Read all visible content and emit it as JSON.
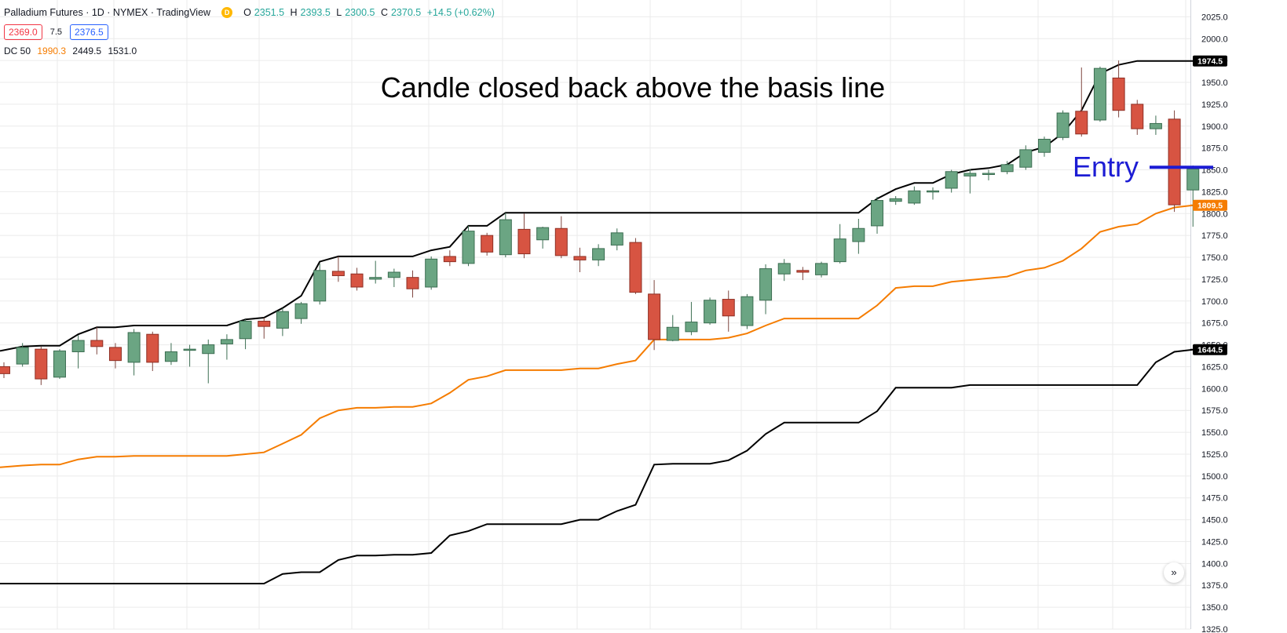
{
  "legend": {
    "title": "Palladium Futures · 1D · NYMEX · TradingView",
    "source_badge": "D",
    "open": "2351.5",
    "high": "2393.5",
    "low": "2300.5",
    "close": "2370.5",
    "change": "+14.5 (+0.62%)",
    "bid": "2369.0",
    "spread": "7.5",
    "ask": "2376.5",
    "indicator": "DC 50",
    "dc_basis": "1990.3",
    "dc_upper": "2449.5",
    "dc_lower": "1531.0"
  },
  "scroll_icon": "double-chevron-right-icon",
  "colors": {
    "up": "#6ba583",
    "down": "#d75442",
    "wick": "#7f4740",
    "upper": "#000000",
    "lower": "#000000",
    "basis": "#f57c00",
    "entry": "#1c1cd4",
    "grid": "#ebebeb"
  },
  "chart_data": {
    "type": "candlestick",
    "y_axis": {
      "min": 1325,
      "max": 2037,
      "ticks": [
        1325,
        1350,
        1375,
        1400,
        1425,
        1450,
        1475,
        1500,
        1525,
        1550,
        1575,
        1600,
        1625,
        1650,
        1675,
        1700,
        1725,
        1750,
        1775,
        1800,
        1825,
        1850,
        1875,
        1900,
        1925,
        1950,
        1975,
        2000,
        2025
      ],
      "tick_labels": [
        "1325.0",
        "1350.0",
        "1375.0",
        "1400.0",
        "1425.0",
        "1450.0",
        "1475.0",
        "1500.0",
        "1525.0",
        "1550.0",
        "1575.0",
        "1600.0",
        "1625.0",
        "1650.0",
        "1675.0",
        "1700.0",
        "1725.0",
        "1750.0",
        "1775.0",
        "1800.0",
        "1825.0",
        "1850.0",
        "1875.0",
        "1900.0",
        "1925.0",
        "1950.0",
        "1975.0",
        "2000.0",
        "2025.0"
      ]
    },
    "grid": true,
    "candles": [
      {
        "o": 1625,
        "h": 1630,
        "l": 1612,
        "c": 1617
      },
      {
        "o": 1628,
        "h": 1652,
        "l": 1625,
        "c": 1647
      },
      {
        "o": 1645,
        "h": 1648,
        "l": 1604,
        "c": 1611
      },
      {
        "o": 1613,
        "h": 1645,
        "l": 1611,
        "c": 1643
      },
      {
        "o": 1642,
        "h": 1661,
        "l": 1623,
        "c": 1655
      },
      {
        "o": 1655,
        "h": 1670,
        "l": 1639,
        "c": 1648
      },
      {
        "o": 1647,
        "h": 1652,
        "l": 1623,
        "c": 1632
      },
      {
        "o": 1630,
        "h": 1668,
        "l": 1615,
        "c": 1664
      },
      {
        "o": 1662,
        "h": 1665,
        "l": 1620,
        "c": 1630
      },
      {
        "o": 1631,
        "h": 1652,
        "l": 1627,
        "c": 1642
      },
      {
        "o": 1645,
        "h": 1650,
        "l": 1625,
        "c": 1645
      },
      {
        "o": 1640,
        "h": 1656,
        "l": 1606,
        "c": 1650
      },
      {
        "o": 1651,
        "h": 1662,
        "l": 1633,
        "c": 1656
      },
      {
        "o": 1657,
        "h": 1679,
        "l": 1645,
        "c": 1677
      },
      {
        "o": 1677,
        "h": 1681,
        "l": 1657,
        "c": 1671
      },
      {
        "o": 1669,
        "h": 1692,
        "l": 1660,
        "c": 1688
      },
      {
        "o": 1680,
        "h": 1699,
        "l": 1674,
        "c": 1697
      },
      {
        "o": 1700,
        "h": 1743,
        "l": 1696,
        "c": 1735
      },
      {
        "o": 1734,
        "h": 1751,
        "l": 1722,
        "c": 1729
      },
      {
        "o": 1731,
        "h": 1738,
        "l": 1712,
        "c": 1716
      },
      {
        "o": 1725,
        "h": 1746,
        "l": 1720,
        "c": 1727
      },
      {
        "o": 1727,
        "h": 1737,
        "l": 1716,
        "c": 1733
      },
      {
        "o": 1727,
        "h": 1735,
        "l": 1704,
        "c": 1714
      },
      {
        "o": 1716,
        "h": 1751,
        "l": 1713,
        "c": 1748
      },
      {
        "o": 1751,
        "h": 1758,
        "l": 1740,
        "c": 1745
      },
      {
        "o": 1743,
        "h": 1786,
        "l": 1740,
        "c": 1780
      },
      {
        "o": 1775,
        "h": 1778,
        "l": 1752,
        "c": 1756
      },
      {
        "o": 1753,
        "h": 1801,
        "l": 1750,
        "c": 1793
      },
      {
        "o": 1782,
        "h": 1800,
        "l": 1749,
        "c": 1754
      },
      {
        "o": 1770,
        "h": 1785,
        "l": 1760,
        "c": 1784
      },
      {
        "o": 1783,
        "h": 1797,
        "l": 1749,
        "c": 1752
      },
      {
        "o": 1751,
        "h": 1761,
        "l": 1733,
        "c": 1747
      },
      {
        "o": 1747,
        "h": 1765,
        "l": 1740,
        "c": 1760
      },
      {
        "o": 1764,
        "h": 1783,
        "l": 1758,
        "c": 1778
      },
      {
        "o": 1767,
        "h": 1772,
        "l": 1708,
        "c": 1710
      },
      {
        "o": 1708,
        "h": 1724,
        "l": 1644,
        "c": 1656
      },
      {
        "o": 1655,
        "h": 1684,
        "l": 1654,
        "c": 1670
      },
      {
        "o": 1665,
        "h": 1699,
        "l": 1661,
        "c": 1676
      },
      {
        "o": 1675,
        "h": 1704,
        "l": 1673,
        "c": 1701
      },
      {
        "o": 1702,
        "h": 1712,
        "l": 1665,
        "c": 1683
      },
      {
        "o": 1672,
        "h": 1708,
        "l": 1668,
        "c": 1705
      },
      {
        "o": 1701,
        "h": 1742,
        "l": 1685,
        "c": 1737
      },
      {
        "o": 1731,
        "h": 1748,
        "l": 1723,
        "c": 1743
      },
      {
        "o": 1735,
        "h": 1739,
        "l": 1724,
        "c": 1733
      },
      {
        "o": 1730,
        "h": 1745,
        "l": 1727,
        "c": 1743
      },
      {
        "o": 1745,
        "h": 1788,
        "l": 1743,
        "c": 1771
      },
      {
        "o": 1768,
        "h": 1794,
        "l": 1754,
        "c": 1783
      },
      {
        "o": 1786,
        "h": 1819,
        "l": 1777,
        "c": 1815
      },
      {
        "o": 1814,
        "h": 1820,
        "l": 1810,
        "c": 1817
      },
      {
        "o": 1812,
        "h": 1831,
        "l": 1810,
        "c": 1826
      },
      {
        "o": 1826,
        "h": 1830,
        "l": 1816,
        "c": 1826
      },
      {
        "o": 1829,
        "h": 1850,
        "l": 1824,
        "c": 1848
      },
      {
        "o": 1843,
        "h": 1851,
        "l": 1823,
        "c": 1846
      },
      {
        "o": 1845,
        "h": 1850,
        "l": 1838,
        "c": 1846
      },
      {
        "o": 1848,
        "h": 1860,
        "l": 1845,
        "c": 1856
      },
      {
        "o": 1853,
        "h": 1878,
        "l": 1850,
        "c": 1873
      },
      {
        "o": 1870,
        "h": 1888,
        "l": 1865,
        "c": 1885
      },
      {
        "o": 1887,
        "h": 1918,
        "l": 1884,
        "c": 1915
      },
      {
        "o": 1917,
        "h": 1967,
        "l": 1888,
        "c": 1891
      },
      {
        "o": 1907,
        "h": 1968,
        "l": 1905,
        "c": 1966
      },
      {
        "o": 1955,
        "h": 1975,
        "l": 1910,
        "c": 1918
      },
      {
        "o": 1925,
        "h": 1930,
        "l": 1890,
        "c": 1897
      },
      {
        "o": 1897,
        "h": 1912,
        "l": 1890,
        "c": 1903
      },
      {
        "o": 1908,
        "h": 1918,
        "l": 1802,
        "c": 1810
      },
      {
        "o": 1827,
        "h": 1855,
        "l": 1785,
        "c": 1851
      }
    ],
    "series": [
      {
        "values": [
          1643,
          1648,
          1649,
          1649,
          1662,
          1670,
          1670,
          1672,
          1672,
          1672,
          1672,
          1672,
          1672,
          1679,
          1681,
          1692,
          1706,
          1745,
          1751,
          1751,
          1751,
          1751,
          1751,
          1758,
          1762,
          1786,
          1786,
          1801,
          1801,
          1801,
          1801,
          1801,
          1801,
          1801,
          1801,
          1801,
          1801,
          1801,
          1801,
          1801,
          1801,
          1801,
          1801,
          1801,
          1801,
          1801,
          1801,
          1817,
          1828,
          1835,
          1835,
          1845,
          1850,
          1852,
          1856,
          1870,
          1876,
          1892,
          1918,
          1960,
          1970,
          1974.5,
          1974.5,
          1974.5,
          1974.5,
          1974.5
        ]
      },
      {
        "values": [
          1510,
          1512,
          1513,
          1513,
          1519,
          1522,
          1522,
          1523,
          1523,
          1523,
          1523,
          1523,
          1523,
          1525,
          1527,
          1537,
          1547,
          1566,
          1575,
          1578,
          1578,
          1579,
          1579,
          1583,
          1595,
          1610,
          1614,
          1621,
          1621,
          1621,
          1621,
          1623,
          1623,
          1628,
          1632,
          1656,
          1656,
          1656,
          1656,
          1658,
          1663,
          1672,
          1680,
          1680,
          1680,
          1680,
          1680,
          1695,
          1715,
          1717,
          1717,
          1722,
          1724,
          1726,
          1728,
          1735,
          1738,
          1746,
          1760,
          1779,
          1785,
          1788,
          1800,
          1807,
          1809.5,
          1809.5
        ]
      },
      {
        "values": [
          1377,
          1377,
          1377,
          1377,
          1377,
          1377,
          1377,
          1377,
          1377,
          1377,
          1377,
          1377,
          1377,
          1377,
          1377,
          1388,
          1390,
          1390,
          1404,
          1409,
          1409,
          1410,
          1410,
          1412,
          1432,
          1437,
          1445,
          1445,
          1445,
          1445,
          1445,
          1450,
          1450,
          1460,
          1467,
          1513,
          1514,
          1514,
          1514,
          1518,
          1529,
          1548,
          1561,
          1561,
          1561,
          1561,
          1561,
          1574,
          1601,
          1601,
          1601,
          1601,
          1604,
          1604,
          1604,
          1604,
          1604,
          1604,
          1604,
          1604,
          1604,
          1604,
          1630,
          1642,
          1644.5,
          1644.5
        ]
      }
    ],
    "price_labels": [
      {
        "text": "1974.5",
        "value": 1974.5
      },
      {
        "text": "1809.5",
        "value": 1809.5
      },
      {
        "text": "1644.5",
        "value": 1644.5
      }
    ],
    "annotations": [
      {
        "text": "Candle closed back above the basis line"
      },
      {
        "text": "Entry",
        "price": 1853
      }
    ]
  }
}
